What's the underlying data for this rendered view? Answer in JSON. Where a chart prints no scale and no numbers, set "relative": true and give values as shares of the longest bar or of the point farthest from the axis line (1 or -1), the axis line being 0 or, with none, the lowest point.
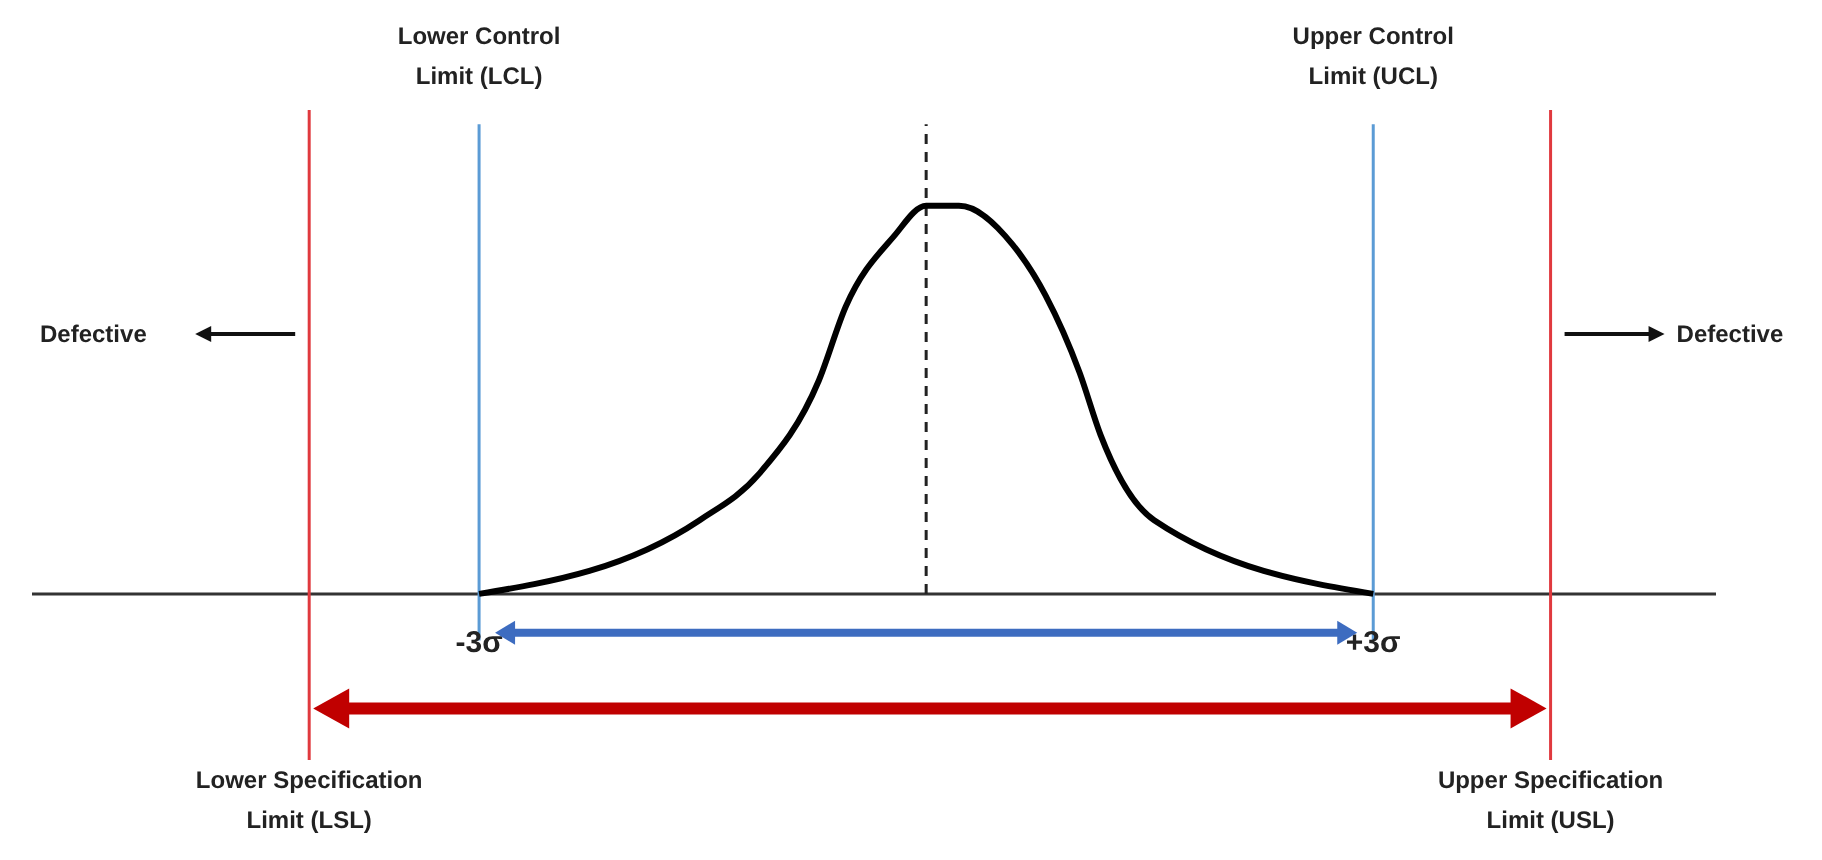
{
  "chart_data": {
    "type": "line",
    "relative": true,
    "x": [
      -3,
      -1.52,
      -1.12,
      -0.72,
      -0.54,
      -0.22,
      0,
      0.22,
      0.58,
      0.8,
      1.03,
      1.17,
      1.53,
      3
    ],
    "series": [
      {
        "color": "#000000",
        "values": [
          0,
          0.19,
          0.31,
          0.55,
          0.74,
          0.92,
          1,
          1,
          0.9,
          0.77,
          0.57,
          0.41,
          0.19,
          0
        ]
      }
    ],
    "xlim": [
      -6,
      5.3
    ],
    "xticks": [
      {
        "value": -3,
        "label": "-3σ"
      },
      {
        "value": 3,
        "label": "+3σ"
      }
    ],
    "ref_lines": [
      {
        "axis": "x",
        "value": -4.14,
        "label": "Lower Specification Limit (LSL)",
        "color": "#e0393e"
      },
      {
        "axis": "x",
        "value": -3,
        "label": "Lower Control Limit (LCL)",
        "color": "#5b9bd5"
      },
      {
        "axis": "x",
        "value": 0,
        "color": "#222222",
        "line_style": "dashed"
      },
      {
        "axis": "x",
        "value": 3,
        "label": "Upper Control Limit (UCL)",
        "color": "#5b9bd5"
      },
      {
        "axis": "x",
        "value": 4.19,
        "label": "Upper Specification Limit (USL)",
        "color": "#e0393e"
      }
    ],
    "annotations": [
      "Defective",
      "Defective"
    ],
    "marker": "none",
    "line_style": "solid"
  }
}
